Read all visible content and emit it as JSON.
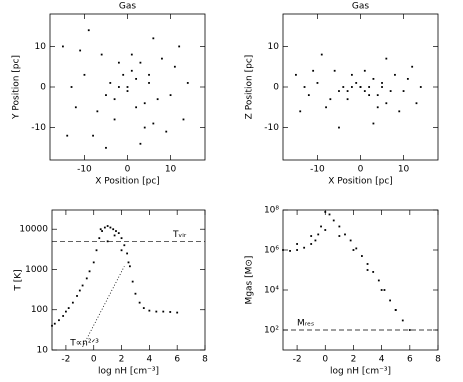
{
  "chart_data": [
    {
      "type": "scatter",
      "title": "Gas",
      "xlabel": "X Position [pc]",
      "ylabel": "Y Position [pc]",
      "color": "#000000",
      "xlim": [
        -18,
        18
      ],
      "ylim": [
        -18,
        18
      ],
      "xticks": [
        -10,
        0,
        10
      ],
      "yticks": [
        -10,
        0,
        10
      ],
      "x": [
        -15,
        -12,
        -10,
        -8,
        -6,
        -5,
        -4,
        -3,
        -2,
        -1,
        0,
        1,
        2,
        3,
        4,
        5,
        6,
        8,
        10,
        12,
        14,
        -14,
        -9,
        -7,
        3,
        6,
        9,
        11,
        -11,
        -3,
        2,
        0,
        -2,
        5,
        1,
        -5,
        7,
        -13,
        13,
        4
      ],
      "values": [
        10,
        -5,
        3,
        -12,
        8,
        -2,
        1,
        -8,
        0,
        3,
        -1,
        4,
        2,
        6,
        -4,
        3,
        -9,
        7,
        -2,
        10,
        1,
        -12,
        14,
        -6,
        -14,
        12,
        -11,
        5,
        9,
        -3,
        -5,
        0,
        6,
        1,
        8,
        -15,
        -3,
        0,
        -8,
        -10
      ]
    },
    {
      "type": "scatter",
      "title": "Gas",
      "xlabel": "X Position [pc]",
      "ylabel": "Z Position [pc]",
      "color": "#000000",
      "xlim": [
        -18,
        18
      ],
      "ylim": [
        -18,
        18
      ],
      "xticks": [
        -10,
        0,
        10
      ],
      "yticks": [
        -10,
        0,
        10
      ],
      "x": [
        -15,
        -12,
        -10,
        -8,
        -6,
        -5,
        -4,
        -3,
        -2,
        -1,
        0,
        1,
        2,
        3,
        4,
        5,
        6,
        8,
        10,
        12,
        14,
        -14,
        -9,
        -7,
        3,
        6,
        9,
        11,
        -11,
        -3,
        2,
        0,
        -2,
        5,
        1,
        -5,
        7,
        -13,
        13,
        4
      ],
      "values": [
        3,
        -2,
        1,
        -5,
        4,
        -1,
        0,
        -3,
        0,
        1,
        0,
        -1,
        0,
        2,
        -2,
        1,
        -4,
        3,
        -1,
        5,
        0,
        -6,
        8,
        -3,
        -9,
        7,
        -6,
        2,
        4,
        -1,
        -2,
        0,
        3,
        0,
        4,
        -10,
        -1,
        0,
        -4,
        -5
      ]
    },
    {
      "type": "scatter",
      "xlabel": "log nH [cm⁻³]",
      "ylabel": "T [K]",
      "color": "#000000",
      "log_y": true,
      "xlim": [
        -3,
        8
      ],
      "ylim": [
        10,
        30000
      ],
      "xticks": [
        -2,
        0,
        2,
        4,
        6,
        8
      ],
      "yticks": [
        10,
        100,
        1000,
        10000
      ],
      "hline": {
        "value": 5000,
        "label": "Tᵥᵢᵣ"
      },
      "guide": {
        "x": [
          -0.8,
          2.2
        ],
        "y": [
          12,
          1200
        ],
        "label": "T∝n²ᐟ³"
      },
      "x": [
        -3,
        -2.8,
        -2.5,
        -2.2,
        -2,
        -1.8,
        -1.5,
        -1.2,
        -1,
        -0.8,
        -0.5,
        -0.3,
        0,
        0.2,
        0.4,
        0.6,
        0.8,
        1,
        1.2,
        1.4,
        1.6,
        1.8,
        2,
        2.2,
        2.4,
        2.6,
        2.8,
        3,
        3.3,
        3.6,
        4,
        4.5,
        5,
        5.5,
        6,
        1,
        1.5,
        2,
        0.5,
        2.5
      ],
      "values": [
        40,
        45,
        55,
        70,
        90,
        110,
        150,
        220,
        300,
        400,
        600,
        900,
        1500,
        3000,
        6000,
        9000,
        11000,
        12000,
        11000,
        10000,
        9000,
        8000,
        6000,
        4000,
        2500,
        1200,
        500,
        250,
        150,
        110,
        95,
        90,
        90,
        88,
        85,
        5000,
        7000,
        3000,
        10000,
        1500
      ]
    },
    {
      "type": "scatter",
      "xlabel": "log nH [cm⁻³]",
      "ylabel": "Mgas [M⊙]",
      "color": "#000000",
      "log_y": true,
      "xlim": [
        -3,
        8
      ],
      "ylim": [
        10,
        100000000.0
      ],
      "xticks": [
        -2,
        0,
        2,
        4,
        6,
        8
      ],
      "yticks": [
        {
          "value": 100,
          "label": "10²"
        },
        {
          "value": 10000,
          "label": "10⁴"
        },
        {
          "value": 1000000,
          "label": "10⁶"
        },
        {
          "value": 100000000,
          "label": "10⁸"
        }
      ],
      "hline": {
        "value": 100,
        "label": "Mᵣₑₛ"
      },
      "x": [
        -3,
        -2.5,
        -2,
        -1.5,
        -1,
        -0.7,
        -0.5,
        -0.3,
        0,
        0.3,
        0.6,
        1,
        1.4,
        1.8,
        2.2,
        2.6,
        3,
        3.4,
        3.8,
        4.2,
        4.6,
        5,
        5.5,
        6,
        -2,
        -1,
        0,
        1,
        2,
        3,
        4,
        5
      ],
      "values": [
        1000000.0,
        900000.0,
        1000000.0,
        1300000.0,
        2000000.0,
        3000000.0,
        6000000.0,
        15000000.0,
        80000000.0,
        60000000.0,
        30000000.0,
        15000000.0,
        6000000.0,
        3000000.0,
        1200000.0,
        500000.0,
        200000.0,
        80000.0,
        30000.0,
        10000.0,
        3000.0,
        1000.0,
        300.0,
        100.0,
        2000000.0,
        5000000.0,
        10000000.0,
        5000000.0,
        1000000.0,
        100000.0,
        10000.0,
        1000.0
      ]
    }
  ]
}
